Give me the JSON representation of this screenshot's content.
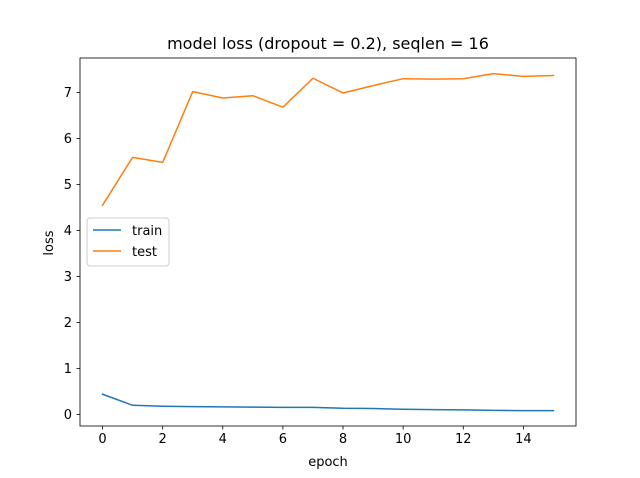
{
  "chart_data": {
    "type": "line",
    "title": "model loss (dropout = 0.2), seqlen = 16",
    "xlabel": "epoch",
    "ylabel": "loss",
    "xlim": [
      -0.75,
      15.75
    ],
    "ylim": [
      -0.25,
      7.75
    ],
    "xticks": [
      0,
      2,
      4,
      6,
      8,
      10,
      12,
      14
    ],
    "yticks": [
      0,
      1,
      2,
      3,
      4,
      5,
      6,
      7
    ],
    "grid": false,
    "legend_position": "center-left",
    "x": [
      0,
      1,
      2,
      3,
      4,
      5,
      6,
      7,
      8,
      9,
      10,
      11,
      12,
      13,
      14,
      15
    ],
    "series": [
      {
        "name": "train",
        "color": "#1f77b4",
        "values": [
          0.44,
          0.2,
          0.18,
          0.17,
          0.165,
          0.16,
          0.155,
          0.155,
          0.135,
          0.13,
          0.115,
          0.105,
          0.1,
          0.09,
          0.085,
          0.085
        ]
      },
      {
        "name": "test",
        "color": "#ff7f0e",
        "values": [
          4.55,
          5.59,
          5.48,
          7.02,
          6.88,
          6.93,
          6.68,
          7.31,
          6.99,
          7.15,
          7.3,
          7.29,
          7.3,
          7.41,
          7.35,
          7.37
        ]
      }
    ]
  }
}
